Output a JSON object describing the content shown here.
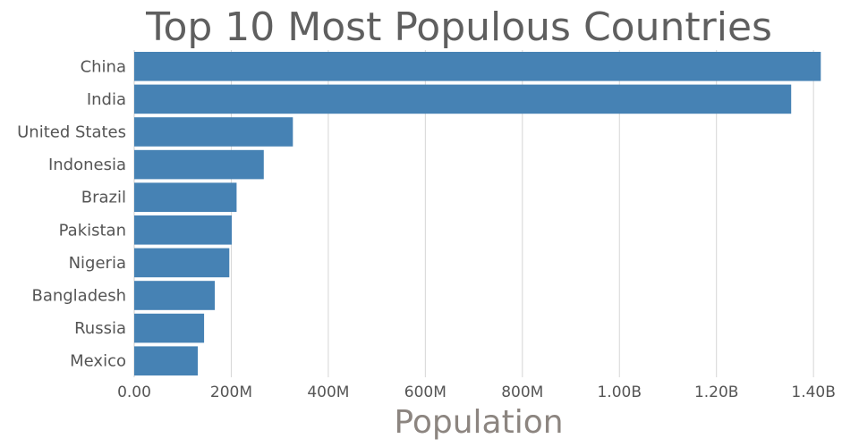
{
  "chart_data": {
    "type": "bar",
    "orientation": "horizontal",
    "title": "Top 10 Most Populous Countries",
    "xlabel": "Population",
    "ylabel": "",
    "categories": [
      "China",
      "India",
      "United States",
      "Indonesia",
      "Brazil",
      "Pakistan",
      "Nigeria",
      "Bangladesh",
      "Russia",
      "Mexico"
    ],
    "values": [
      1415000000,
      1354000000,
      327000000,
      267000000,
      211000000,
      201000000,
      196000000,
      166000000,
      144000000,
      131000000
    ],
    "xlim": [
      0,
      1420000000
    ],
    "xticks": [
      0,
      200000000,
      400000000,
      600000000,
      800000000,
      1000000000,
      1200000000,
      1400000000
    ],
    "xtick_labels": [
      "0.00",
      "200M",
      "400M",
      "600M",
      "800M",
      "1.00B",
      "1.20B",
      "1.40B"
    ],
    "bar_color": "#4682b4",
    "grid": true
  }
}
